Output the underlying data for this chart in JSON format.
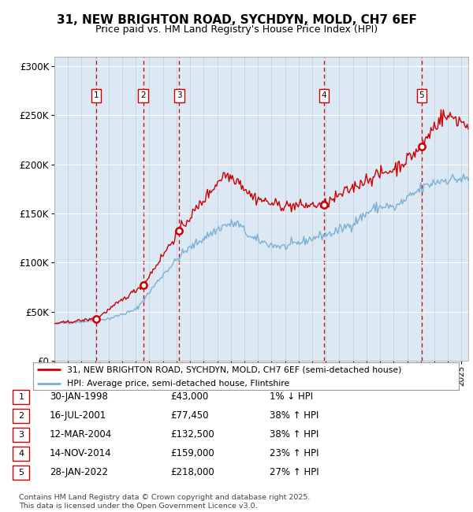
{
  "title": "31, NEW BRIGHTON ROAD, SYCHDYN, MOLD, CH7 6EF",
  "subtitle": "Price paid vs. HM Land Registry's House Price Index (HPI)",
  "plot_bg_color": "#dce9f5",
  "ylim": [
    0,
    310000
  ],
  "yticks": [
    0,
    50000,
    100000,
    150000,
    200000,
    250000,
    300000
  ],
  "ytick_labels": [
    "£0",
    "£50K",
    "£100K",
    "£150K",
    "£200K",
    "£250K",
    "£300K"
  ],
  "sale_dates": [
    1998.08,
    2001.54,
    2004.19,
    2014.87,
    2022.07
  ],
  "sale_prices": [
    43000,
    77450,
    132500,
    159000,
    218000
  ],
  "sale_labels": [
    "1",
    "2",
    "3",
    "4",
    "5"
  ],
  "hpi_color": "#7ab0d4",
  "price_color": "#cc0000",
  "vline_color": "#cc0000",
  "legend_label_price": "31, NEW BRIGHTON ROAD, SYCHDYN, MOLD, CH7 6EF (semi-detached house)",
  "legend_label_hpi": "HPI: Average price, semi-detached house, Flintshire",
  "table_data": [
    [
      "1",
      "30-JAN-1998",
      "£43,000",
      "1% ↓ HPI"
    ],
    [
      "2",
      "16-JUL-2001",
      "£77,450",
      "38% ↑ HPI"
    ],
    [
      "3",
      "12-MAR-2004",
      "£132,500",
      "38% ↑ HPI"
    ],
    [
      "4",
      "14-NOV-2014",
      "£159,000",
      "23% ↑ HPI"
    ],
    [
      "5",
      "28-JAN-2022",
      "£218,000",
      "27% ↑ HPI"
    ]
  ],
  "footer": "Contains HM Land Registry data © Crown copyright and database right 2025.\nThis data is licensed under the Open Government Licence v3.0.",
  "xmin": 1995,
  "xmax": 2025.5
}
